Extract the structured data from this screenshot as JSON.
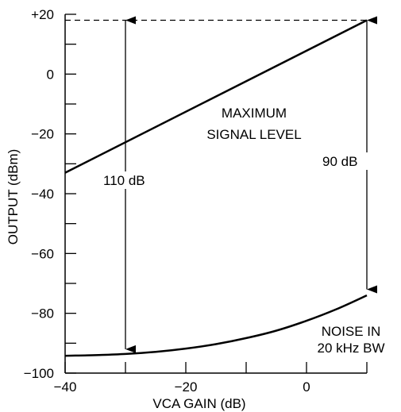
{
  "chart_data": {
    "type": "line",
    "xlabel": "VCA GAIN (dB)",
    "ylabel": "OUTPUT (dBm)",
    "xlim": [
      -40,
      10
    ],
    "ylim": [
      -100,
      20
    ],
    "xticks": [
      -40,
      -30,
      -20,
      -10,
      0,
      10
    ],
    "xtick_labels": [
      "−40",
      "",
      "−20",
      "",
      "0",
      ""
    ],
    "yticks": [
      -100,
      -90,
      -80,
      -70,
      -60,
      -50,
      -40,
      -30,
      -20,
      -10,
      0,
      10,
      20
    ],
    "ytick_labels": [
      "−100",
      "",
      "−80",
      "",
      "−60",
      "",
      "−40",
      "",
      "−20",
      "",
      "0",
      "",
      "+20"
    ],
    "grid": false,
    "series": [
      {
        "name": "MAXIMUM SIGNAL LEVEL",
        "x": [
          -40,
          10
        ],
        "y": [
          -33,
          18
        ]
      },
      {
        "name": "NOISE IN 20 kHz BW",
        "x": [
          -40,
          -35,
          -30,
          -25,
          -20,
          -15,
          -10,
          -5,
          0,
          5,
          10
        ],
        "y": [
          -94.2,
          -94.0,
          -93.6,
          -92.9,
          -91.8,
          -90.3,
          -88.3,
          -85.8,
          -82.5,
          -78.6,
          -74
        ]
      }
    ],
    "annotations": {
      "max_level": {
        "x": 10,
        "y": 18
      },
      "span_110": {
        "x": -30,
        "y_top": 18,
        "y_bottom": -92,
        "label": "110 dB"
      },
      "span_90": {
        "x": 10,
        "y_top": 18,
        "y_bottom": -72,
        "label": "90 dB"
      },
      "label_max_line1": "MAXIMUM",
      "label_max_line2": "SIGNAL LEVEL",
      "label_noise_line1": "NOISE IN",
      "label_noise_line2": "20 kHz BW"
    }
  }
}
